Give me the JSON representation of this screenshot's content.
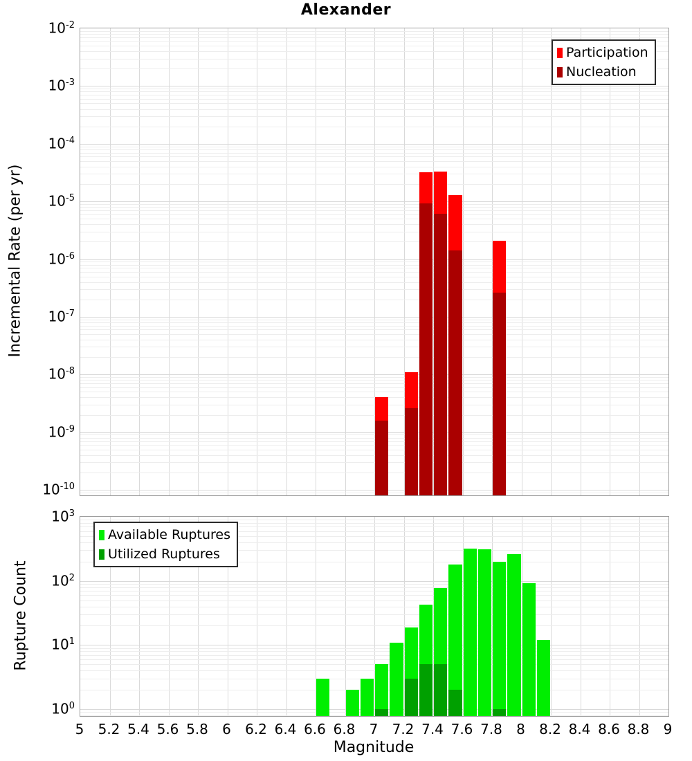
{
  "title": "Alexander",
  "x_axis": {
    "label": "Magnitude",
    "tick_labels": [
      "5",
      "5.2",
      "5.4",
      "5.6",
      "5.8",
      "6",
      "6.2",
      "6.4",
      "6.6",
      "6.8",
      "7",
      "7.2",
      "7.4",
      "7.6",
      "7.8",
      "8",
      "8.2",
      "8.4",
      "8.6",
      "8.8",
      "9"
    ]
  },
  "top_panel": {
    "ylabel": "Incremental Rate (per yr)",
    "ytick_exponents": [
      "-2",
      "-3",
      "-4",
      "-5",
      "-6",
      "-7",
      "-8",
      "-9",
      "-10"
    ],
    "legend_position": "top-right"
  },
  "bottom_panel": {
    "ylabel": "Rupture Count",
    "ytick_exponents": [
      "3",
      "2",
      "1",
      "0"
    ],
    "legend_position": "top-left"
  },
  "colors": {
    "participation": "#FF0000",
    "nucleation": "#AA0000",
    "available": "#00EE00",
    "utilized": "#00A000",
    "grid_major": "#d9d9d9",
    "grid_minor": "#ededed",
    "frame": "#9c9c9c"
  },
  "chart_data": [
    {
      "type": "bar",
      "title": "Alexander",
      "xlabel": "Magnitude",
      "ylabel": "Incremental Rate (per yr)",
      "xlim": [
        5,
        9
      ],
      "ylim": [
        8e-11,
        0.01
      ],
      "yscale": "log",
      "grid": true,
      "legend_position": "top-right",
      "bin_width": 0.1,
      "bin_centers": [
        7.05,
        7.25,
        7.35,
        7.45,
        7.55,
        7.85
      ],
      "series": [
        {
          "name": "Participation",
          "color": "#FF0000",
          "values": [
            4.1e-09,
            1.1e-08,
            3.2e-05,
            3.3e-05,
            1.3e-05,
            2.1e-06
          ]
        },
        {
          "name": "Nucleation",
          "color": "#AA0000",
          "values": [
            1.6e-09,
            2.6e-09,
            9.2e-06,
            6.1e-06,
            1.4e-06,
            2.6e-07
          ]
        }
      ]
    },
    {
      "type": "bar",
      "xlabel": "Magnitude",
      "ylabel": "Rupture Count",
      "xlim": [
        5,
        9
      ],
      "ylim": [
        0.8,
        1000
      ],
      "yscale": "log",
      "grid": true,
      "legend_position": "top-left",
      "bin_width": 0.1,
      "bin_centers": [
        6.65,
        6.85,
        6.95,
        7.05,
        7.15,
        7.25,
        7.35,
        7.45,
        7.55,
        7.65,
        7.75,
        7.85,
        7.95,
        8.05,
        8.15
      ],
      "series": [
        {
          "name": "Available Ruptures",
          "color": "#00EE00",
          "values": [
            3,
            2,
            3,
            5,
            11,
            19,
            43,
            78,
            180,
            320,
            310,
            200,
            260,
            92,
            12
          ]
        },
        {
          "name": "Utilized Ruptures",
          "color": "#00A000",
          "values": [
            null,
            null,
            null,
            1,
            null,
            3,
            5,
            5,
            2,
            null,
            null,
            1,
            null,
            null,
            null
          ]
        }
      ]
    }
  ]
}
